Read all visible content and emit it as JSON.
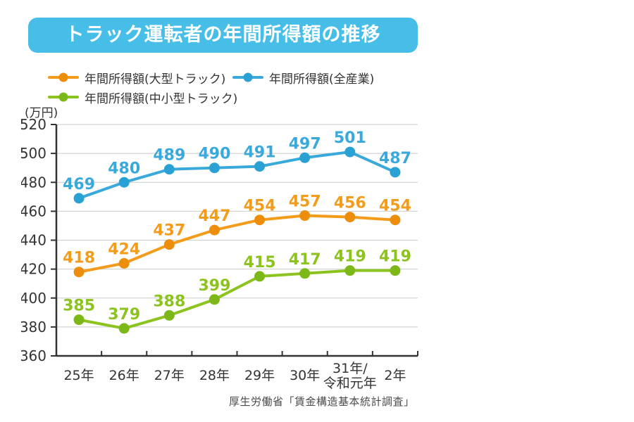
{
  "header": {
    "title": "トラック運転者の年間所得額の推移",
    "bg_color": "#47BEE8",
    "text_color": "#ffffff"
  },
  "source": {
    "text": "厚生労働省「賃金構造基本統計調査」"
  },
  "chart_data": {
    "type": "line",
    "title": "トラック運転者の年間所得額の推移",
    "ylabel": "(万円)",
    "categories": [
      "25年",
      "26年",
      "27年",
      "28年",
      "29年",
      "30年",
      "31年/令和元年",
      "2年"
    ],
    "series": [
      {
        "name": "年間所得額(大型トラック)",
        "color": "#F39C1B",
        "dot_color": "#EC8D0B",
        "values": [
          418,
          424,
          437,
          447,
          454,
          457,
          456,
          454
        ]
      },
      {
        "name": "年間所得額(全産業)",
        "color": "#39A9DC",
        "dot_color": "#2AA1D4",
        "values": [
          469,
          480,
          489,
          490,
          491,
          497,
          501,
          487
        ]
      },
      {
        "name": "年間所得額(中小型トラック)",
        "color": "#8CC31F",
        "dot_color": "#7CB818",
        "values": [
          385,
          379,
          388,
          399,
          415,
          417,
          419,
          419
        ]
      }
    ],
    "ylim": [
      360,
      520
    ],
    "ytick_step": 20,
    "grid": true,
    "legend_position": "top",
    "axis_color": "#333333",
    "grid_color": "#cbcbcb"
  }
}
